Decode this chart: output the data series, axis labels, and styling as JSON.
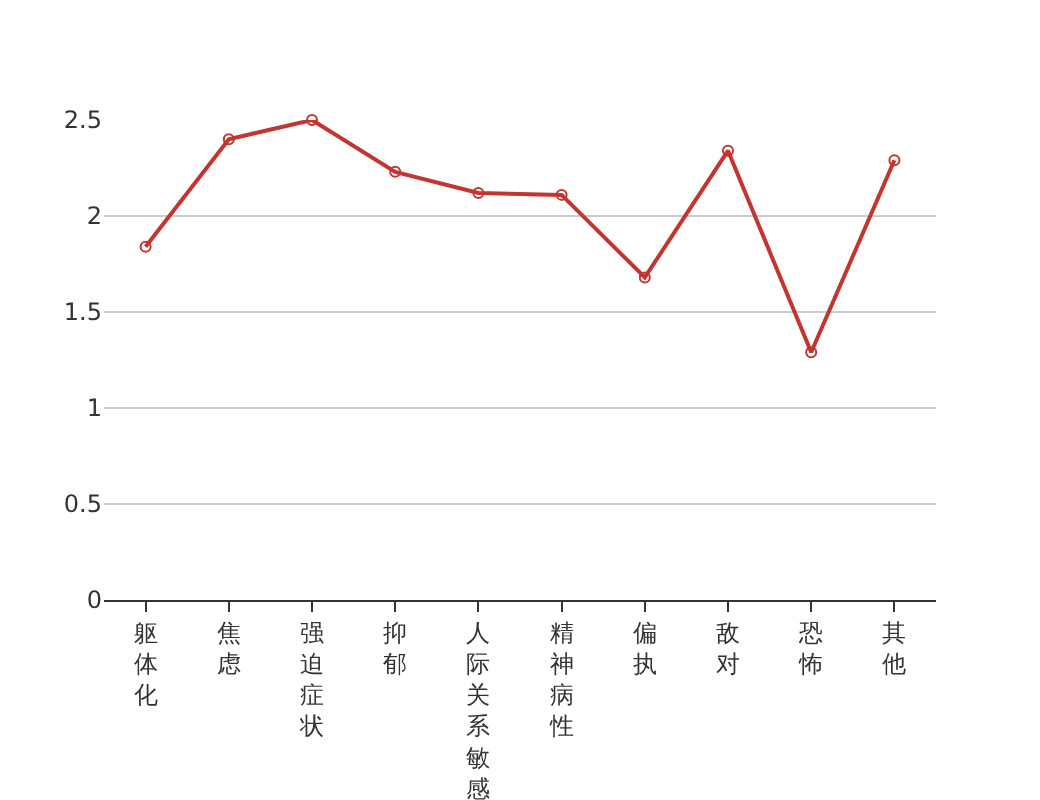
{
  "chart_data": {
    "type": "line",
    "categories": [
      "躯体化",
      "焦虑",
      "强迫症状",
      "抑郁",
      "人际关系敏感",
      "精神病性",
      "偏执",
      "敌对",
      "恐怖",
      "其他"
    ],
    "series": [
      {
        "color": "#c23531",
        "values": [
          1.84,
          2.4,
          2.5,
          2.23,
          2.12,
          2.11,
          1.68,
          2.34,
          1.29,
          2.29
        ]
      }
    ],
    "ylim": [
      0,
      2.5
    ],
    "yticks": [
      0,
      0.5,
      1,
      1.5,
      2,
      2.5
    ],
    "grid": "y",
    "legend": false,
    "marker": "circle",
    "line_style": "solid"
  }
}
